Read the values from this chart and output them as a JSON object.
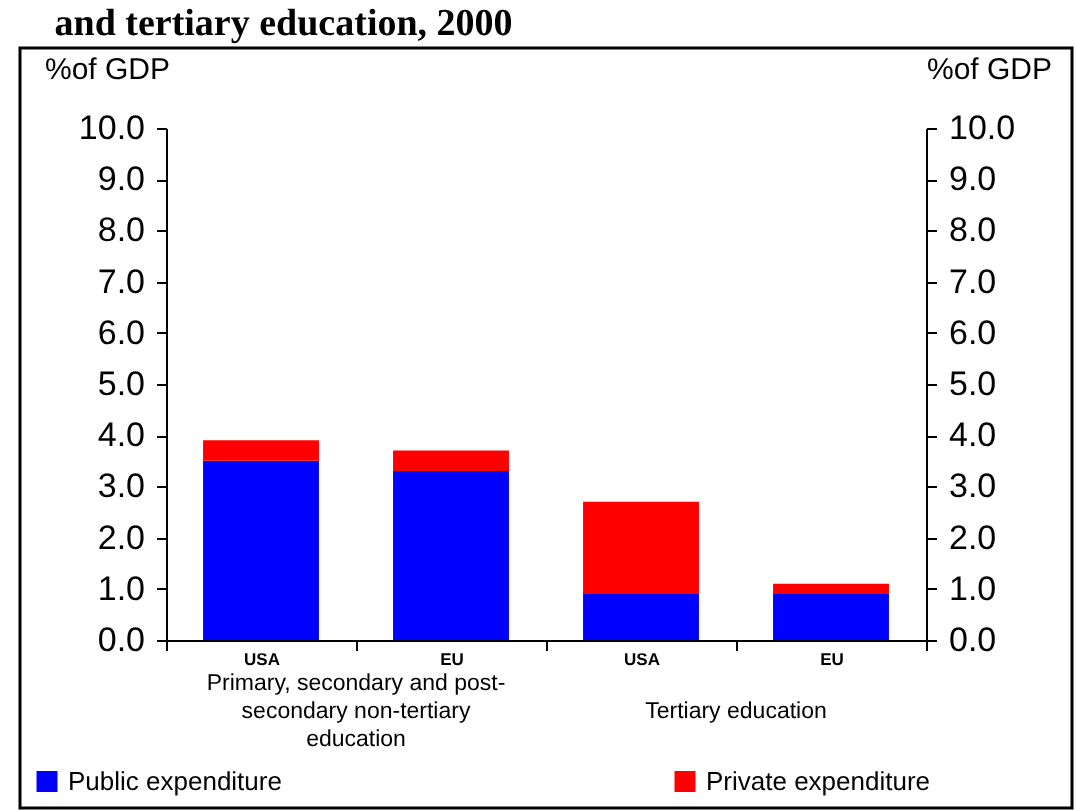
{
  "chart_data": {
    "type": "bar",
    "title": "and tertiary education, 2000",
    "ylabel": "%of GDP",
    "y2label": "%of GDP",
    "categories": [
      "USA",
      "EU",
      "USA",
      "EU"
    ],
    "annotations": [
      "Primary, secondary and post-secondary non-tertiary education",
      "Tertiary education"
    ],
    "stacked": true,
    "series": [
      {
        "name": "Public expenditure",
        "color": "#0000ff",
        "values": [
          3.5,
          3.3,
          0.9,
          0.9
        ]
      },
      {
        "name": "Private expenditure",
        "color": "#ff0000",
        "values": [
          0.4,
          0.4,
          1.8,
          0.2
        ]
      }
    ],
    "ylim": [
      0,
      10
    ],
    "yticks": [
      {
        "value": 0,
        "label": "0.0"
      },
      {
        "value": 1,
        "label": "1.0"
      },
      {
        "value": 2,
        "label": "2.0"
      },
      {
        "value": 3,
        "label": "3.0"
      },
      {
        "value": 4,
        "label": "4.0"
      },
      {
        "value": 5,
        "label": "5.0"
      },
      {
        "value": 6,
        "label": "6.0"
      },
      {
        "value": 7,
        "label": "7.0"
      },
      {
        "value": 8,
        "label": "8.0"
      },
      {
        "value": 9,
        "label": "9.0"
      },
      {
        "value": 10,
        "label": "10.0"
      }
    ],
    "y2lim": [
      0,
      10
    ],
    "y2ticks": [
      {
        "value": 0,
        "label": "0.0"
      },
      {
        "value": 1,
        "label": "1.0"
      },
      {
        "value": 2,
        "label": "2.0"
      },
      {
        "value": 3,
        "label": "3.0"
      },
      {
        "value": 4,
        "label": "4.0"
      },
      {
        "value": 5,
        "label": "5.0"
      },
      {
        "value": 6,
        "label": "6.0"
      },
      {
        "value": 7,
        "label": "7.0"
      },
      {
        "value": 8,
        "label": "8.0"
      },
      {
        "value": 9,
        "label": "9.0"
      },
      {
        "value": 10,
        "label": "10.0"
      }
    ],
    "legend": "bottom",
    "grid": false
  }
}
